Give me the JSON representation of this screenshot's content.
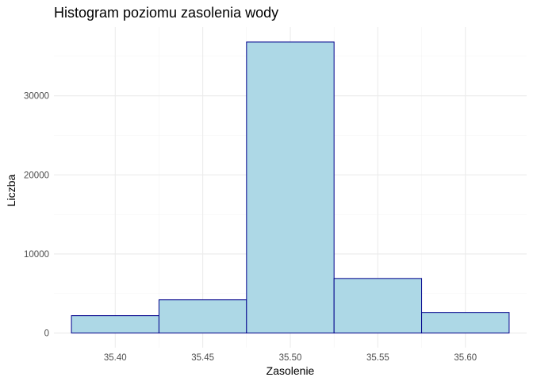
{
  "chart_data": {
    "type": "histogram",
    "title": "Histogram poziomu zasolenia wody",
    "xlabel": "Zasolenie",
    "ylabel": "Liczba",
    "xlim": [
      35.365,
      35.635
    ],
    "ylim": [
      -1850,
      38700
    ],
    "x_ticks": [
      35.4,
      35.45,
      35.5,
      35.55,
      35.6
    ],
    "x_tick_labels": [
      "35.40",
      "35.45",
      "35.50",
      "35.55",
      "35.60"
    ],
    "y_ticks": [
      0,
      10000,
      20000,
      30000
    ],
    "y_tick_labels": [
      "0",
      "10000",
      "20000",
      "30000"
    ],
    "bins": [
      {
        "x0": 35.375,
        "x1": 35.425,
        "count": 2200
      },
      {
        "x0": 35.425,
        "x1": 35.475,
        "count": 4200
      },
      {
        "x0": 35.475,
        "x1": 35.525,
        "count": 36800
      },
      {
        "x0": 35.525,
        "x1": 35.575,
        "count": 6900
      },
      {
        "x0": 35.575,
        "x1": 35.625,
        "count": 2600
      }
    ],
    "fill_color": "#add8e6",
    "border_color": "#00008b",
    "grid": true,
    "theme": "minimal"
  }
}
